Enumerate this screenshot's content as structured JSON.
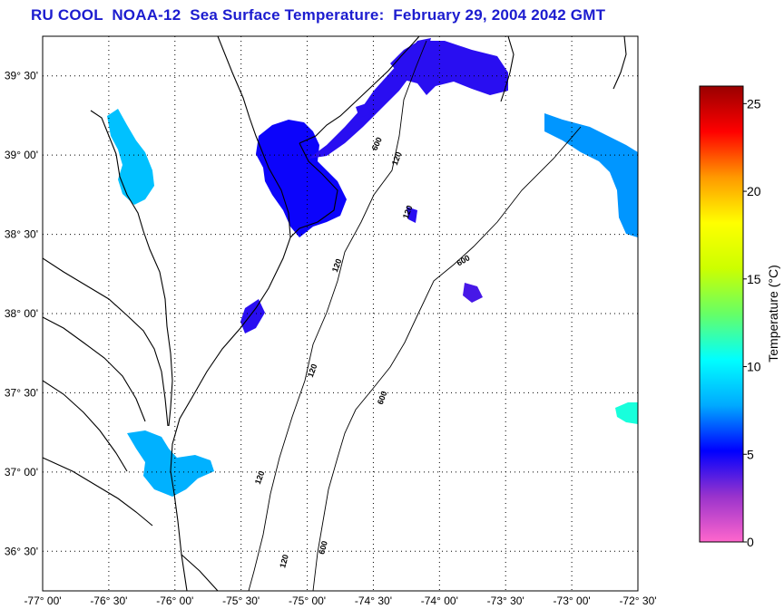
{
  "title": "RU COOL  NOAA-12  Sea Surface Temperature:  February 29, 2004 2042 GMT",
  "map": {
    "lon_range": [
      -77.0,
      -72.5
    ],
    "lat_range": [
      36.25,
      39.75
    ],
    "lon_ticks": [
      {
        "value": -77.0,
        "label": "-77° 00'"
      },
      {
        "value": -76.5,
        "label": "-76° 30'"
      },
      {
        "value": -76.0,
        "label": "-76° 00'"
      },
      {
        "value": -75.5,
        "label": "-75° 30'"
      },
      {
        "value": -75.0,
        "label": "-75° 00'"
      },
      {
        "value": -74.5,
        "label": "-74° 30'"
      },
      {
        "value": -74.0,
        "label": "-74° 00'"
      },
      {
        "value": -73.5,
        "label": "-73° 30'"
      },
      {
        "value": -73.0,
        "label": "-73° 00'"
      },
      {
        "value": -72.5,
        "label": "-72° 30'"
      }
    ],
    "lat_ticks": [
      {
        "value": 39.5,
        "label": "39° 30'"
      },
      {
        "value": 39.0,
        "label": "39° 00'"
      },
      {
        "value": 38.5,
        "label": "38° 30'"
      },
      {
        "value": 38.0,
        "label": "38° 00'"
      },
      {
        "value": 37.5,
        "label": "37° 30'"
      },
      {
        "value": 37.0,
        "label": "37° 00'"
      },
      {
        "value": 36.5,
        "label": "36° 30'"
      }
    ],
    "grid": "dotted",
    "isobath_labels": [
      "120",
      "120",
      "120",
      "600",
      "600",
      "120",
      "600",
      "120",
      "120",
      "600"
    ]
  },
  "colorbar": {
    "label": "Temperature (°C)",
    "min": 0,
    "max": 26,
    "ticks": [
      {
        "value": 25,
        "label": "25"
      },
      {
        "value": 20,
        "label": "20"
      },
      {
        "value": 15,
        "label": "15"
      },
      {
        "value": 10,
        "label": "10"
      },
      {
        "value": 5,
        "label": "5"
      },
      {
        "value": 0,
        "label": "0"
      }
    ],
    "colors": [
      "#ff66cc",
      "#9933cc",
      "#0000ff",
      "#00aaff",
      "#00ffff",
      "#66ff66",
      "#ccff00",
      "#ffff00",
      "#ff9900",
      "#ff0000",
      "#990000"
    ]
  },
  "sst_patches": [
    {
      "name": "delaware-bay-patch",
      "temp": 5.0
    },
    {
      "name": "nj-coast-patch",
      "temp": 4.5
    },
    {
      "name": "hudson-shelf-patch",
      "temp": 4.5
    },
    {
      "name": "east-edge-patch",
      "temp": 7.5
    },
    {
      "name": "southeast-patch",
      "temp": 11.0
    },
    {
      "name": "chesapeake-mouth-patch",
      "temp": 8.0
    },
    {
      "name": "upper-chesapeake-patch",
      "temp": 8.5
    },
    {
      "name": "mid-shelf-patch",
      "temp": 4.0
    }
  ]
}
